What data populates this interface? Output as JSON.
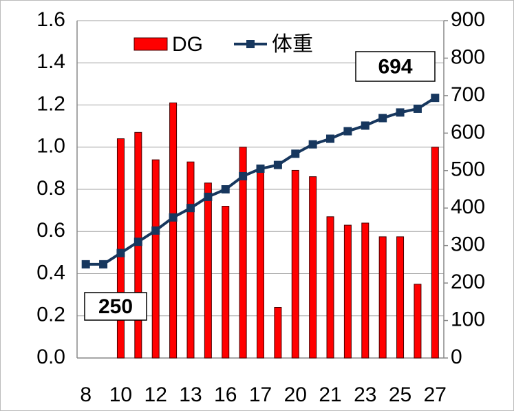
{
  "chart_data": {
    "type": "bar_line",
    "categories": [
      "8",
      null,
      "10",
      null,
      "12",
      null,
      "13",
      null,
      "16",
      null,
      "17",
      null,
      "20",
      null,
      "21",
      null,
      "23",
      null,
      "25",
      null,
      "27"
    ],
    "series": [
      {
        "name": "DG",
        "type": "bar",
        "color": "#ff0000",
        "axis": "y",
        "values": [
          0,
          0,
          1.04,
          1.07,
          0.94,
          1.21,
          0.93,
          0.83,
          0.72,
          1.0,
          0.88,
          0.24,
          0.89,
          0.86,
          0.67,
          0.63,
          0.64,
          0.575,
          0.575,
          0.35,
          1.0
        ]
      },
      {
        "name": "体重",
        "type": "line",
        "color": "#17375e",
        "axis": "y2",
        "values": [
          250,
          250,
          280,
          310,
          340,
          375,
          400,
          430,
          450,
          485,
          505,
          515,
          545,
          570,
          585,
          605,
          620,
          640,
          655,
          665,
          694
        ]
      }
    ],
    "labeled_points": [
      0,
      20
    ],
    "ylim": [
      0,
      1.6
    ],
    "yticks": [
      {
        "value": 0,
        "label": "0.0"
      },
      0.2,
      0.4,
      0.6,
      0.8,
      {
        "value": 1,
        "label": "1.0"
      },
      1.2,
      1.4,
      1.6
    ],
    "y2lim": [
      0,
      900
    ],
    "y2ticks": [
      0,
      100,
      200,
      300,
      400,
      500,
      600,
      700,
      800,
      900
    ],
    "grid": true,
    "legend": "top"
  }
}
